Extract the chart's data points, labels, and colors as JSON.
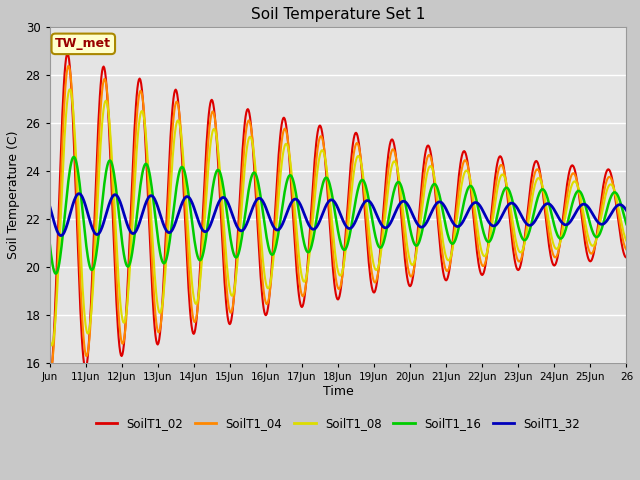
{
  "title": "Soil Temperature Set 1",
  "ylabel": "Soil Temperature (C)",
  "xlabel": "Time",
  "ylim": [
    16,
    30
  ],
  "xlim_days": [
    10,
    26
  ],
  "tick_labels": [
    "Jun",
    "11Jun",
    "12Jun",
    "13Jun",
    "14Jun",
    "15Jun",
    "16Jun",
    "17Jun",
    "18Jun",
    "19Jun",
    "20Jun",
    "21Jun",
    "22Jun",
    "23Jun",
    "24Jun",
    "25Jun",
    "26"
  ],
  "annotation_text": "TW_met",
  "annotation_color": "#990000",
  "annotation_bg": "#ffffcc",
  "annotation_border": "#aa8800",
  "series_colors": {
    "SoilT1_02": "#dd0000",
    "SoilT1_04": "#ff8800",
    "SoilT1_08": "#dddd00",
    "SoilT1_16": "#00cc00",
    "SoilT1_32": "#0000bb"
  },
  "fig_bg": "#c8c8c8",
  "plot_bg": "#e4e4e4",
  "grid_color": "#ffffff",
  "mean_temp": 22.2,
  "initial_amplitudes": [
    7.0,
    6.5,
    5.5,
    2.5,
    0.9
  ],
  "final_amplitudes": [
    1.8,
    1.5,
    1.2,
    0.9,
    0.4
  ],
  "phase_shifts_rad": [
    0.0,
    0.18,
    0.4,
    1.1,
    2.0
  ],
  "period_hours": 24,
  "start_day": 10.0,
  "end_day": 26.0
}
